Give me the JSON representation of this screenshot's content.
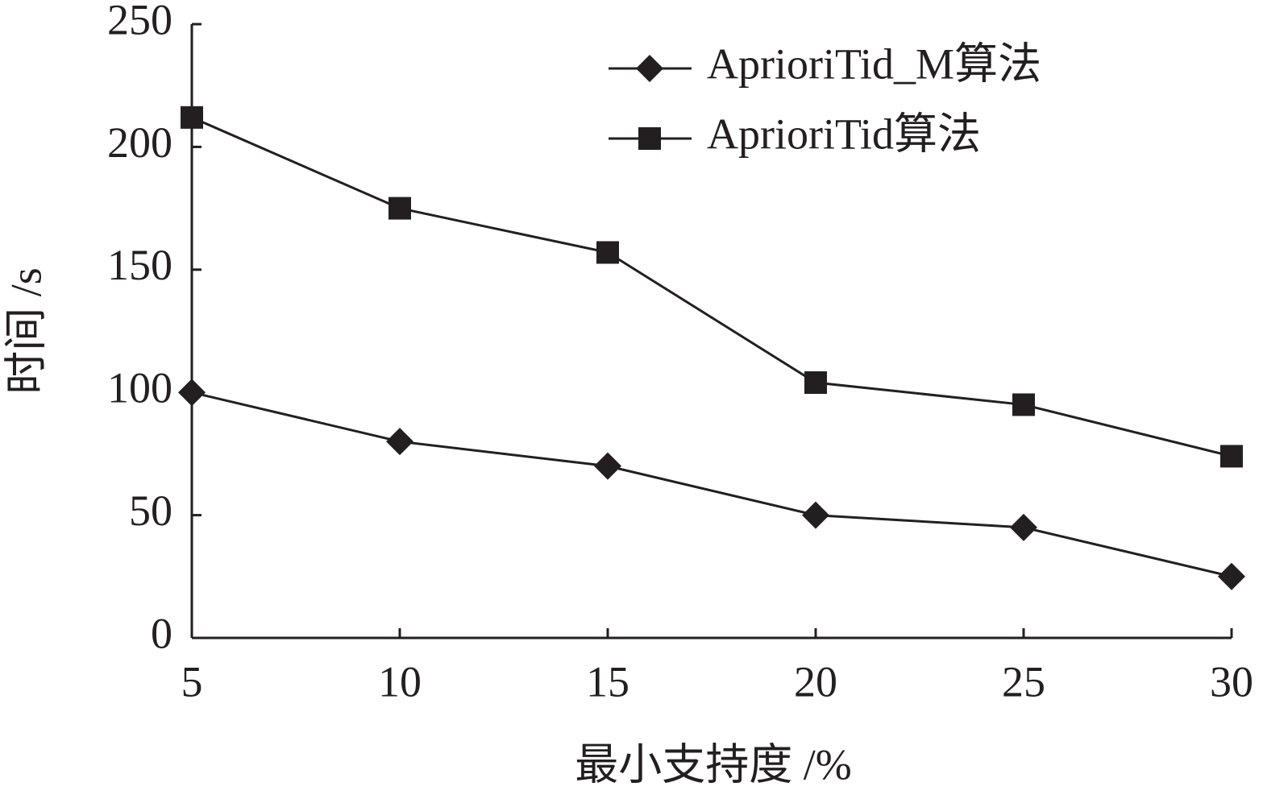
{
  "chart_data": {
    "type": "line",
    "x_label": "最小支持度 /%",
    "y_label": "时间 /s",
    "x": [
      5,
      10,
      15,
      20,
      25,
      30
    ],
    "series": [
      {
        "name": "AprioriTid_M算法",
        "color": "#231f20",
        "marker": "diamond",
        "values": [
          100,
          80,
          70,
          50,
          45,
          25
        ]
      },
      {
        "name": "AprioriTid算法",
        "color": "#231f20",
        "marker": "square",
        "values": [
          212,
          175,
          157,
          104,
          95,
          74
        ]
      }
    ],
    "xlim": [
      5,
      30
    ],
    "xticks": [
      5,
      10,
      15,
      20,
      25,
      30
    ],
    "ylim": [
      0,
      250
    ],
    "yticks": [
      0,
      50,
      100,
      150,
      200,
      250
    ],
    "legend": "upper-right"
  }
}
